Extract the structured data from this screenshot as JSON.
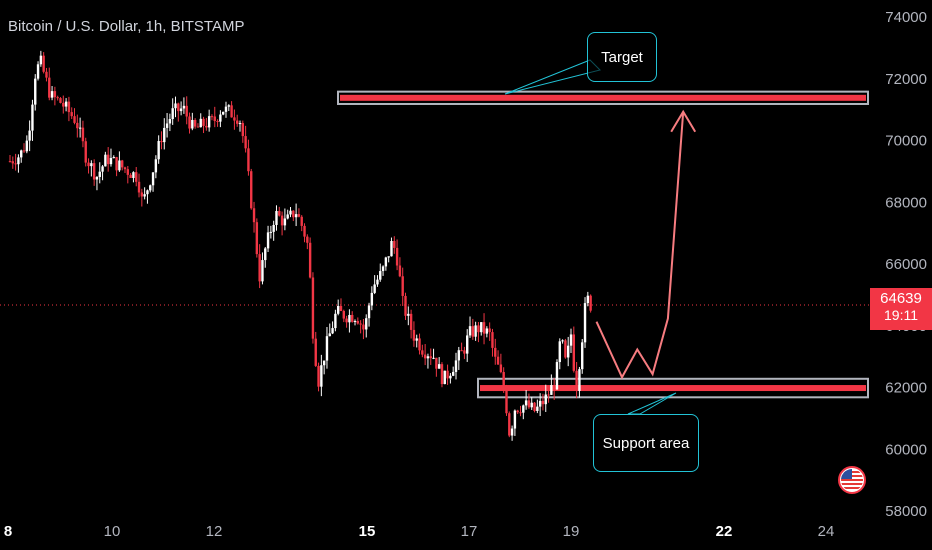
{
  "header": {
    "symbol_title": "Bitcoin / U.S. Dollar, 1h, BITSTAMP"
  },
  "current_price": {
    "value": "64639",
    "countdown": "19:11"
  },
  "annotations": {
    "target_label": "Target",
    "support_label": "Support area"
  },
  "colors": {
    "up": "#ffffff",
    "down": "#f23645",
    "accent_cyan": "#22c3d6",
    "zone_fill": "#f23645",
    "zone_border": "#b2b5be",
    "projection": "#f77c80"
  },
  "icons": {
    "flag": "us-flag-icon"
  },
  "chart_data": {
    "type": "candlestick",
    "title": "Bitcoin / U.S. Dollar, 1h, BITSTAMP",
    "ylim": [
      58000,
      74000
    ],
    "y_ticks": [
      "74000",
      "72000",
      "70000",
      "68000",
      "66000",
      "64000",
      "62000",
      "60000",
      "58000"
    ],
    "x_ticks": [
      {
        "label": "8",
        "day": 8,
        "bold": true
      },
      {
        "label": "10",
        "day": 10,
        "bold": false
      },
      {
        "label": "12",
        "day": 12,
        "bold": false
      },
      {
        "label": "15",
        "day": 15,
        "bold": true
      },
      {
        "label": "17",
        "day": 17,
        "bold": false
      },
      {
        "label": "19",
        "day": 19,
        "bold": false
      },
      {
        "label": "22",
        "day": 22,
        "bold": true
      },
      {
        "label": "24",
        "day": 24,
        "bold": false
      }
    ],
    "price_path": [
      [
        8.0,
        69300
      ],
      [
        8.2,
        69500
      ],
      [
        8.35,
        70000
      ],
      [
        8.5,
        72200
      ],
      [
        8.6,
        72500
      ],
      [
        8.8,
        71400
      ],
      [
        9.0,
        71200
      ],
      [
        9.3,
        70600
      ],
      [
        9.5,
        69400
      ],
      [
        9.7,
        68800
      ],
      [
        9.9,
        69400
      ],
      [
        10.1,
        69200
      ],
      [
        10.3,
        69000
      ],
      [
        10.5,
        68800
      ],
      [
        10.6,
        67900
      ],
      [
        10.8,
        69000
      ],
      [
        11.0,
        70300
      ],
      [
        11.2,
        70900
      ],
      [
        11.4,
        71000
      ],
      [
        11.6,
        70300
      ],
      [
        11.8,
        70500
      ],
      [
        12.0,
        70600
      ],
      [
        12.15,
        71000
      ],
      [
        12.3,
        70900
      ],
      [
        12.5,
        70700
      ],
      [
        12.6,
        69800
      ],
      [
        12.8,
        67000
      ],
      [
        12.9,
        65500
      ],
      [
        13.0,
        66400
      ],
      [
        13.2,
        67600
      ],
      [
        13.4,
        67300
      ],
      [
        13.6,
        67700
      ],
      [
        13.75,
        67100
      ],
      [
        13.85,
        66500
      ],
      [
        13.95,
        63500
      ],
      [
        14.05,
        62200
      ],
      [
        14.2,
        63300
      ],
      [
        14.4,
        64400
      ],
      [
        14.6,
        64300
      ],
      [
        14.8,
        64300
      ],
      [
        14.95,
        63800
      ],
      [
        15.1,
        65200
      ],
      [
        15.3,
        65700
      ],
      [
        15.5,
        66700
      ],
      [
        15.6,
        66100
      ],
      [
        15.7,
        64700
      ],
      [
        15.9,
        63700
      ],
      [
        16.1,
        63200
      ],
      [
        16.3,
        63000
      ],
      [
        16.5,
        62200
      ],
      [
        16.7,
        62700
      ],
      [
        16.9,
        63200
      ],
      [
        17.0,
        63700
      ],
      [
        17.2,
        63900
      ],
      [
        17.4,
        63700
      ],
      [
        17.5,
        62900
      ],
      [
        17.6,
        62500
      ],
      [
        17.7,
        61800
      ],
      [
        17.8,
        60400
      ],
      [
        17.9,
        61300
      ],
      [
        18.1,
        61400
      ],
      [
        18.3,
        61200
      ],
      [
        18.5,
        61600
      ],
      [
        18.7,
        62200
      ],
      [
        18.8,
        63600
      ],
      [
        18.9,
        62700
      ],
      [
        19.0,
        63700
      ],
      [
        19.1,
        61900
      ],
      [
        19.2,
        63300
      ],
      [
        19.3,
        64900
      ],
      [
        19.4,
        64600
      ]
    ],
    "support_zone": [
      61650,
      62250
    ],
    "target_zone": [
      71150,
      71550
    ],
    "projection": [
      [
        19.5,
        64100
      ],
      [
        20.0,
        62300
      ],
      [
        20.3,
        63200
      ],
      [
        20.6,
        62400
      ],
      [
        20.9,
        64200
      ],
      [
        21.2,
        70900
      ]
    ],
    "last_price": 64639
  }
}
